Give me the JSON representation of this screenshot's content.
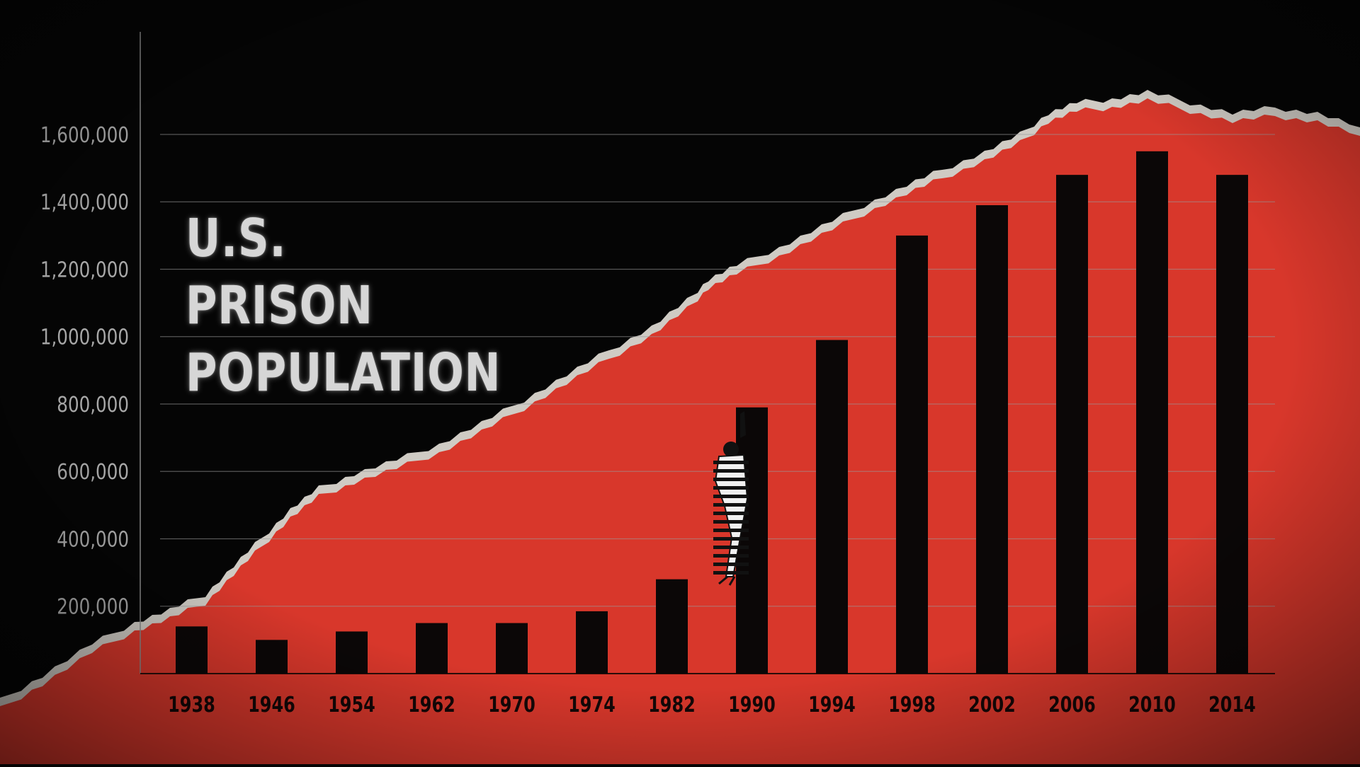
{
  "chart_data": {
    "type": "bar",
    "title_lines": [
      "U.S.",
      "PRISON",
      "POPULATION"
    ],
    "categories": [
      "1938",
      "1946",
      "1954",
      "1962",
      "1970",
      "1974",
      "1982",
      "1990",
      "1994",
      "1998",
      "2002",
      "2006",
      "2010",
      "2014"
    ],
    "values": [
      140000,
      100000,
      125000,
      150000,
      150000,
      185000,
      280000,
      790000,
      990000,
      1300000,
      1390000,
      1480000,
      1550000,
      1480000
    ],
    "y_ticks": [
      "200,000",
      "400,000",
      "600,000",
      "800,000",
      "1,000,000",
      "1,200,000",
      "1,400,000",
      "1,600,000"
    ],
    "y_tick_values": [
      200000,
      400000,
      600000,
      800000,
      1000000,
      1200000,
      1400000,
      1600000
    ],
    "ylim": [
      0,
      1600000
    ],
    "grid": true,
    "colors": {
      "background": "#050505",
      "area": "#d8372b",
      "bars": "#0b0707",
      "paper_edge": "#cfcbc4",
      "text": "#a8a8a8"
    }
  }
}
